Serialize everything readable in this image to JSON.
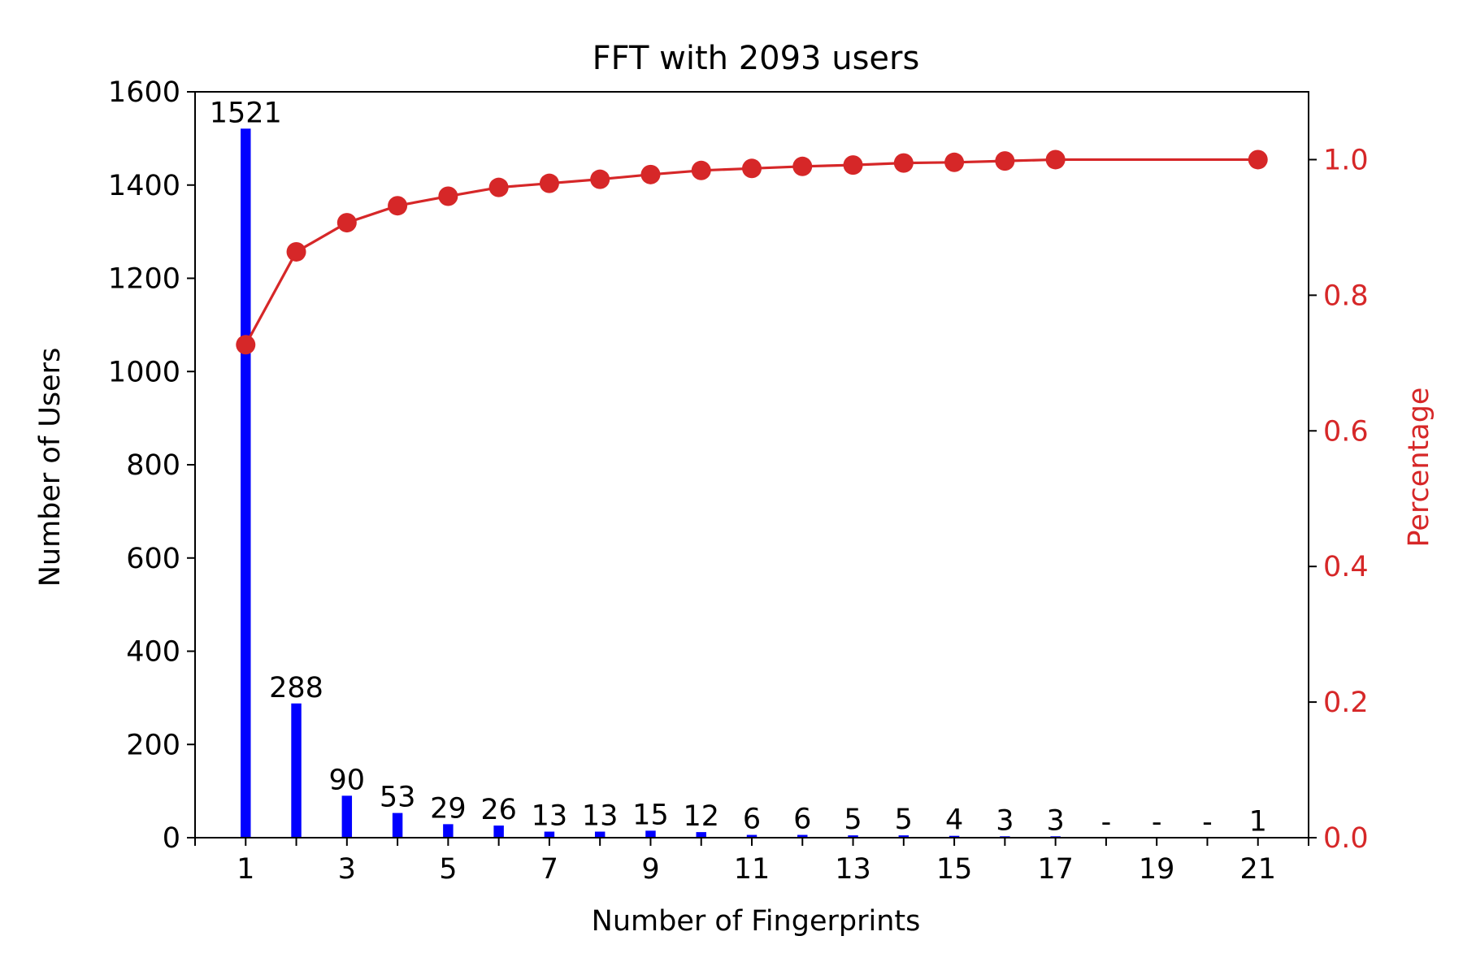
{
  "chart_data": {
    "type": "bar",
    "title": "FFT with 2093 users",
    "xlabel": "Number of Fingerprints",
    "ylabel": "Number of Users",
    "y2label": "Percentage",
    "x": [
      1,
      2,
      3,
      4,
      5,
      6,
      7,
      8,
      9,
      10,
      11,
      12,
      13,
      14,
      15,
      16,
      17,
      18,
      19,
      20,
      21
    ],
    "xticks": [
      1,
      3,
      5,
      7,
      9,
      11,
      13,
      15,
      17,
      19,
      21
    ],
    "xlim": [
      0,
      22
    ],
    "ylim": [
      0,
      1600
    ],
    "yticks": [
      0,
      200,
      400,
      600,
      800,
      1000,
      1200,
      1400,
      1600
    ],
    "y2lim": [
      0,
      1.1
    ],
    "y2ticks": [
      0.0,
      0.2,
      0.4,
      0.6,
      0.8,
      1.0
    ],
    "y2tick_labels": [
      "0.0",
      "0.2",
      "0.4",
      "0.6",
      "0.8",
      "1.0"
    ],
    "series": [
      {
        "type": "bar",
        "axis": "left",
        "color": "#0000ff",
        "values": [
          1521,
          288,
          90,
          53,
          29,
          26,
          13,
          13,
          15,
          12,
          6,
          6,
          5,
          5,
          4,
          3,
          3,
          0,
          0,
          0,
          1
        ],
        "labels": [
          "1521",
          "288",
          "90",
          "53",
          "29",
          "26",
          "13",
          "13",
          "15",
          "12",
          "6",
          "6",
          "5",
          "5",
          "4",
          "3",
          "3",
          "-",
          "-",
          "-",
          "1"
        ]
      },
      {
        "type": "line",
        "axis": "right",
        "color": "#d62728",
        "x": [
          1,
          2,
          3,
          4,
          5,
          6,
          7,
          8,
          9,
          10,
          11,
          12,
          13,
          14,
          15,
          16,
          17,
          21
        ],
        "values": [
          0.727,
          0.864,
          0.907,
          0.932,
          0.946,
          0.959,
          0.965,
          0.971,
          0.978,
          0.984,
          0.987,
          0.99,
          0.992,
          0.995,
          0.996,
          0.998,
          1.0,
          1.0
        ]
      }
    ],
    "grid": false,
    "legend": "none"
  }
}
